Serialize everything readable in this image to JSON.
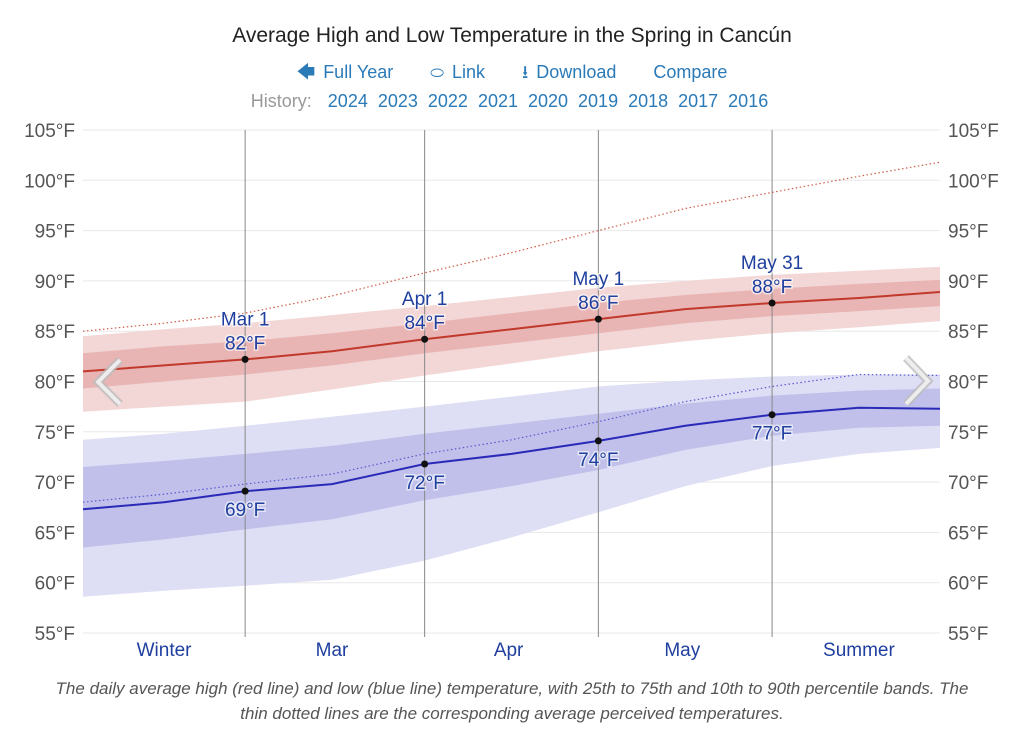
{
  "header": {
    "title": "Average High and Low Temperature in the Spring in Cancún",
    "links": [
      {
        "icon": "arrow-left-icon",
        "glyph": "🡄",
        "label": "Full Year"
      },
      {
        "icon": "link-icon",
        "glyph": "🔗",
        "label": "Link"
      },
      {
        "icon": "download-icon",
        "glyph": "⭳",
        "label": "Download"
      },
      {
        "icon": "",
        "glyph": "",
        "label": "Compare"
      }
    ],
    "history_label": "History:",
    "history_years": [
      "2024",
      "2023",
      "2022",
      "2021",
      "2020",
      "2019",
      "2018",
      "2017",
      "2016"
    ]
  },
  "colors": {
    "link": "#2a7ab8",
    "high_line": "#c0392b",
    "low_line": "#2a2ab8",
    "high_band_outer": "#f3d6d6",
    "high_band_inner": "#e8b4b4",
    "low_band_outer": "#dedef5",
    "low_band_inner": "#c0c0ea",
    "annotation": "#1f3f9f"
  },
  "chart_data": {
    "type": "line",
    "title": "Average High and Low Temperature in the Spring in Cancún",
    "xlabel": "",
    "ylabel": "",
    "ylim": [
      55,
      105
    ],
    "y_ticks": [
      "55°F",
      "60°F",
      "65°F",
      "70°F",
      "75°F",
      "80°F",
      "85°F",
      "90°F",
      "95°F",
      "100°F",
      "105°F"
    ],
    "y_tick_values": [
      55,
      60,
      65,
      70,
      75,
      80,
      85,
      90,
      95,
      100,
      105
    ],
    "x_unit": "days relative to Mar 1",
    "xlim": [
      -28,
      120
    ],
    "grid": true,
    "season_labels": [
      {
        "label": "Winter",
        "x": -14
      },
      {
        "label": "Mar",
        "x": 15
      },
      {
        "label": "Apr",
        "x": 45.5
      },
      {
        "label": "May",
        "x": 75.5
      },
      {
        "label": "Summer",
        "x": 106
      }
    ],
    "markers": [
      {
        "label": "Mar 1",
        "x": 0
      },
      {
        "label": "Apr 1",
        "x": 31
      },
      {
        "label": "May 1",
        "x": 61
      },
      {
        "label": "May 31",
        "x": 91
      }
    ],
    "x": [
      -28,
      -14,
      0,
      15,
      31,
      46,
      61,
      76,
      91,
      106,
      120
    ],
    "series": [
      {
        "name": "Average high",
        "values": [
          81.0,
          81.6,
          82.2,
          83.0,
          84.2,
          85.2,
          86.2,
          87.2,
          87.8,
          88.3,
          88.9
        ]
      },
      {
        "name": "High 25th percentile",
        "values": [
          79.3,
          80.0,
          80.7,
          81.6,
          82.8,
          83.8,
          84.8,
          85.8,
          86.5,
          87.0,
          87.5
        ]
      },
      {
        "name": "High 75th percentile",
        "values": [
          82.8,
          83.5,
          84.0,
          84.8,
          85.8,
          86.8,
          87.8,
          88.6,
          89.2,
          89.7,
          90.1
        ]
      },
      {
        "name": "High 10th percentile",
        "values": [
          77.0,
          77.5,
          78.0,
          79.2,
          80.6,
          81.8,
          83.0,
          84.0,
          84.8,
          85.4,
          86.0
        ]
      },
      {
        "name": "High 90th percentile",
        "values": [
          84.5,
          85.2,
          85.8,
          86.6,
          87.5,
          88.4,
          89.3,
          90.0,
          90.6,
          91.0,
          91.4
        ]
      },
      {
        "name": "High perceived",
        "values": [
          85.0,
          85.8,
          86.8,
          88.5,
          90.8,
          92.8,
          95.0,
          97.2,
          98.8,
          100.4,
          101.8
        ]
      },
      {
        "name": "Average low",
        "values": [
          67.3,
          68.0,
          69.1,
          69.8,
          71.8,
          72.8,
          74.1,
          75.6,
          76.7,
          77.4,
          77.3
        ]
      },
      {
        "name": "Low 25th percentile",
        "values": [
          63.5,
          64.3,
          65.3,
          66.3,
          68.2,
          69.6,
          71.2,
          73.2,
          74.6,
          75.4,
          75.6
        ]
      },
      {
        "name": "Low 75th percentile",
        "values": [
          71.5,
          72.1,
          72.8,
          73.6,
          74.8,
          75.8,
          76.8,
          77.8,
          78.6,
          79.1,
          79.3
        ]
      },
      {
        "name": "Low 10th percentile",
        "values": [
          58.6,
          59.2,
          59.7,
          60.3,
          62.2,
          64.5,
          67.0,
          69.6,
          71.6,
          72.8,
          73.4
        ]
      },
      {
        "name": "Low 90th percentile",
        "values": [
          74.2,
          74.8,
          75.6,
          76.5,
          77.5,
          78.5,
          79.5,
          80.1,
          80.5,
          80.7,
          80.7
        ]
      },
      {
        "name": "Low perceived",
        "values": [
          68.0,
          68.8,
          69.8,
          70.8,
          72.8,
          74.2,
          76.0,
          78.0,
          79.5,
          80.7,
          80.6
        ]
      }
    ],
    "annotations": [
      {
        "series": "high",
        "x": 0,
        "date": "Mar 1",
        "value": "82°F",
        "v": 82.2
      },
      {
        "series": "high",
        "x": 31,
        "date": "Apr 1",
        "value": "84°F",
        "v": 84.2
      },
      {
        "series": "high",
        "x": 61,
        "date": "May 1",
        "value": "86°F",
        "v": 86.2
      },
      {
        "series": "high",
        "x": 91,
        "date": "May 31",
        "value": "88°F",
        "v": 87.8
      },
      {
        "series": "low",
        "x": 0,
        "value": "69°F",
        "v": 69.1
      },
      {
        "series": "low",
        "x": 31,
        "value": "72°F",
        "v": 71.8
      },
      {
        "series": "low",
        "x": 61,
        "value": "74°F",
        "v": 74.1
      },
      {
        "series": "low",
        "x": 91,
        "value": "77°F",
        "v": 76.7
      }
    ],
    "nav": {
      "prev": "chevron-left-icon",
      "next": "chevron-right-icon"
    }
  },
  "caption": "The daily average high (red line) and low (blue line) temperature, with 25th to 75th and 10th to 90th percentile bands. The thin dotted lines are the corresponding average perceived temperatures."
}
